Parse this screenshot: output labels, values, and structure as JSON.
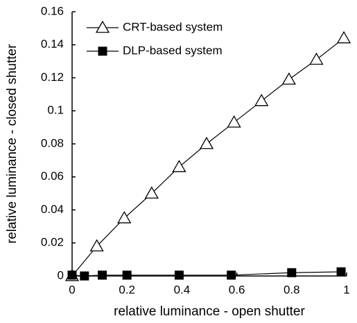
{
  "chart_data": {
    "type": "line",
    "xlabel": "relative luminance - open shutter",
    "ylabel": "relative luminance - closed shutter",
    "xlim": [
      0,
      1
    ],
    "xticks": [
      0,
      0.2,
      0.4,
      0.6,
      0.8,
      1
    ],
    "ylim": [
      0,
      0.16
    ],
    "yticks": [
      0,
      0.02,
      0.04,
      0.06,
      0.08,
      0.1,
      0.12,
      0.14,
      0.16
    ],
    "legend": "upper left",
    "series": [
      {
        "name": "CRT-based system",
        "color": "#000000",
        "marker": "open-triangle",
        "x": [
          0,
          0.09,
          0.19,
          0.29,
          0.39,
          0.49,
          0.59,
          0.69,
          0.79,
          0.89,
          0.99
        ],
        "values": [
          0,
          0.018,
          0.035,
          0.05,
          0.066,
          0.08,
          0.093,
          0.106,
          0.119,
          0.131,
          0.144
        ]
      },
      {
        "name": "DLP-based system",
        "color": "#000000",
        "marker": "filled-square",
        "x": [
          0,
          0.045,
          0.11,
          0.2,
          0.39,
          0.58,
          0.8,
          0.98
        ],
        "values": [
          0.0005,
          0,
          0.0005,
          0.0005,
          0.0005,
          0.0005,
          0.002,
          0.0025
        ]
      }
    ]
  }
}
